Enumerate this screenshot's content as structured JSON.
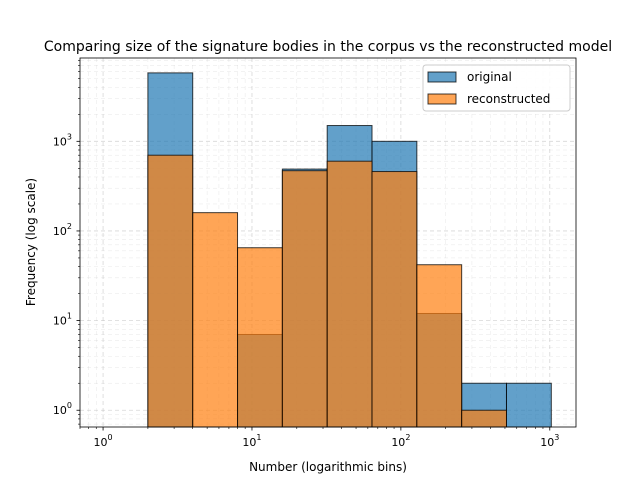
{
  "chart_data": {
    "type": "bar",
    "title": "Comparing size of the signature bodies in the corpus vs the reconstructed model",
    "xlabel": "Number (logarithmic bins)",
    "ylabel": "Frequency (log scale)",
    "x_scale": "log",
    "y_scale": "log",
    "xlim": [
      0.7,
      1500
    ],
    "ylim": [
      0.65,
      8500
    ],
    "bin_edges": [
      1,
      2,
      4,
      8,
      16,
      32,
      64,
      128,
      256,
      512,
      1024
    ],
    "grid": true,
    "legend_position": "top-right",
    "x_ticks": [
      {
        "value": 1,
        "base": "10",
        "exp": "0"
      },
      {
        "value": 10,
        "base": "10",
        "exp": "1"
      },
      {
        "value": 100,
        "base": "10",
        "exp": "2"
      },
      {
        "value": 1000,
        "base": "10",
        "exp": "3"
      }
    ],
    "y_ticks": [
      {
        "value": 1,
        "base": "10",
        "exp": "0"
      },
      {
        "value": 10,
        "base": "10",
        "exp": "1"
      },
      {
        "value": 100,
        "base": "10",
        "exp": "2"
      },
      {
        "value": 1000,
        "base": "10",
        "exp": "3"
      }
    ],
    "series": [
      {
        "name": "original",
        "color": "#1f77b4",
        "alpha": 0.7,
        "values": [
          0,
          5800,
          0,
          7,
          490,
          1500,
          1000,
          12,
          2,
          2
        ]
      },
      {
        "name": "reconstructed",
        "color": "#ff7f0e",
        "alpha": 0.7,
        "values": [
          0,
          700,
          160,
          65,
          470,
          600,
          460,
          42,
          1,
          0
        ]
      }
    ]
  }
}
